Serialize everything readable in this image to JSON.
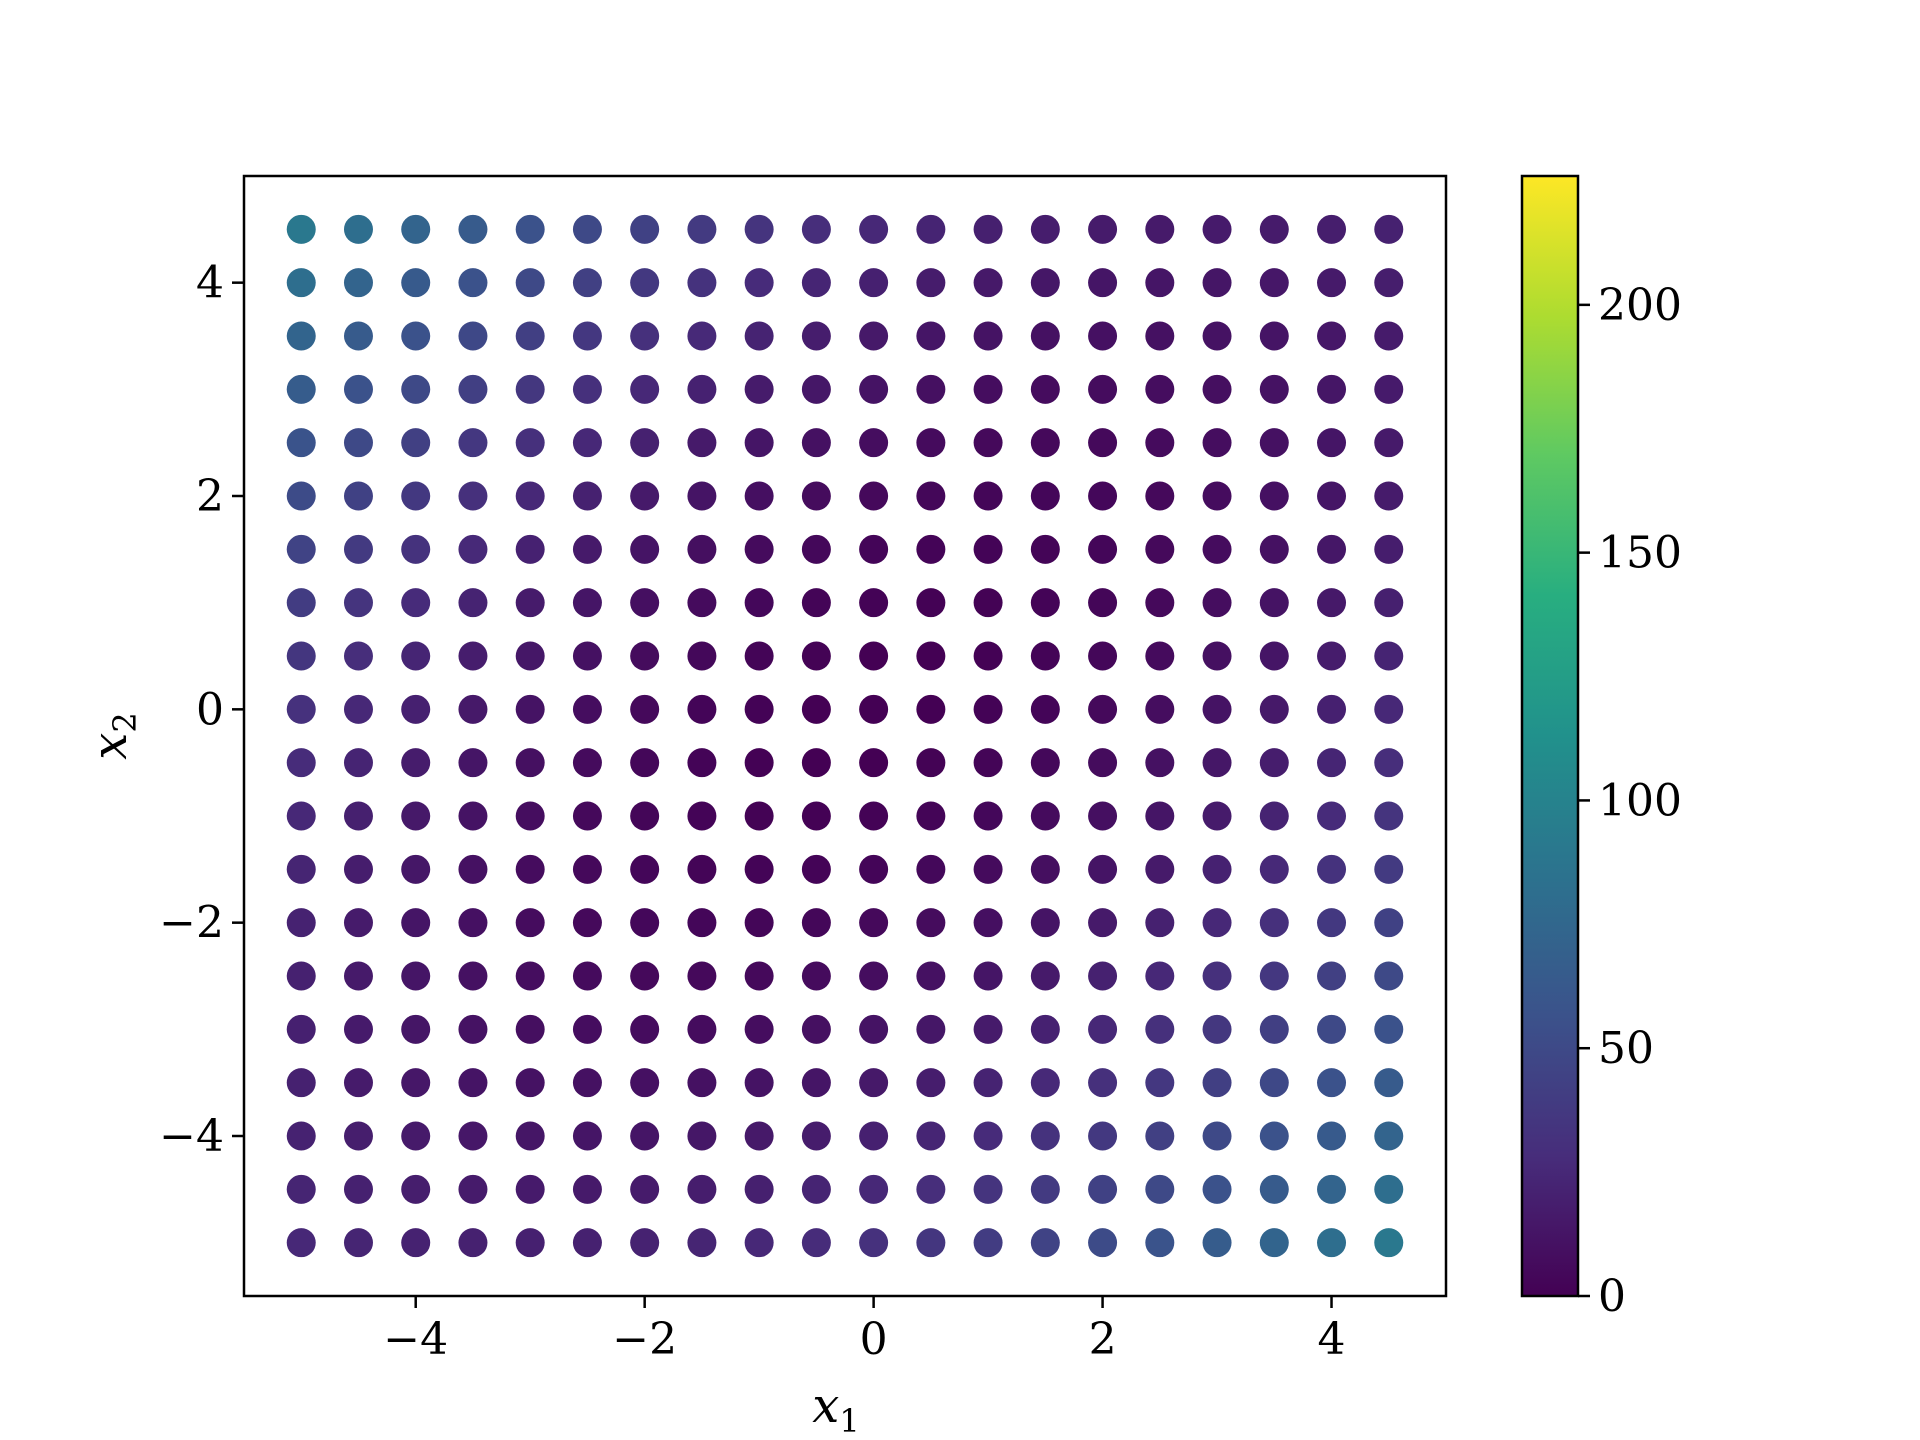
{
  "chart_data": {
    "type": "scatter",
    "title": "",
    "xlabel": "x",
    "xlabel_sub": "1",
    "ylabel": "x",
    "ylabel_sub": "2",
    "xlim": [
      -5.5,
      5.0
    ],
    "ylim": [
      -5.5,
      5.0
    ],
    "xticks": [
      -4,
      -2,
      0,
      2,
      4
    ],
    "yticks": [
      -4,
      -2,
      0,
      2,
      4
    ],
    "xtick_labels": [
      "−4",
      "−2",
      "0",
      "2",
      "4"
    ],
    "ytick_labels": [
      "−4",
      "−2",
      "0",
      "2",
      "4"
    ],
    "grid": false,
    "colormap": "viridis",
    "grid_x": [
      -5,
      -4.5,
      -4,
      -3.5,
      -3,
      -2.5,
      -2,
      -1.5,
      -1,
      -0.5,
      0,
      0.5,
      1,
      1.5,
      2,
      2.5,
      3,
      3.5,
      4,
      4.5
    ],
    "grid_y": [
      -5,
      -4.5,
      -4,
      -3.5,
      -3,
      -2.5,
      -2,
      -1.5,
      -1,
      -0.5,
      0,
      0.5,
      1,
      1.5,
      2,
      2.5,
      3,
      3.5,
      4,
      4.5
    ],
    "value_formula": "c = (x1 - x2)^2 + (x1 + x2)^2 / 4",
    "colorbar": {
      "min": 0,
      "max": 226,
      "ticks": [
        0,
        50,
        100,
        150,
        200
      ],
      "tick_labels": [
        "0",
        "50",
        "100",
        "150",
        "200"
      ]
    }
  }
}
